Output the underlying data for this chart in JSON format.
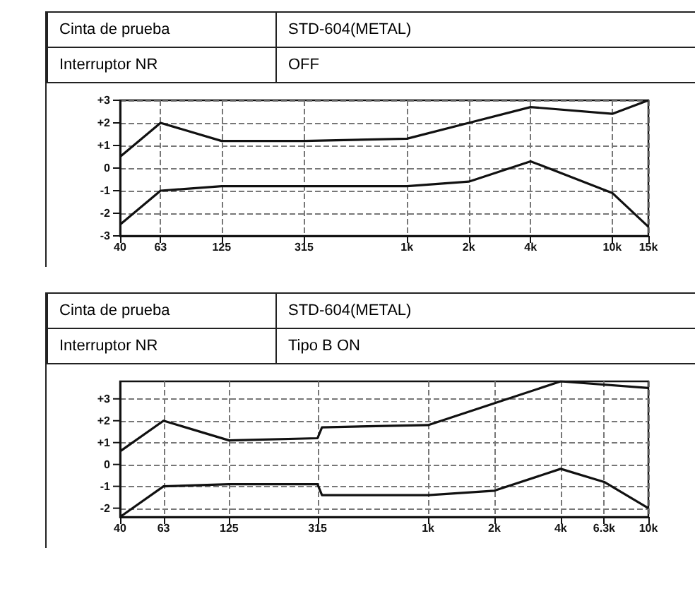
{
  "chart_data": [
    {
      "type": "line",
      "annotations": [
        "Cinta de prueba",
        "STD-604(METAL)",
        "Interruptor NR",
        "OFF"
      ],
      "series": [
        {
          "color": "#111111",
          "x": [
            40,
            63,
            125,
            315,
            1000,
            2000,
            4000,
            10000,
            15000
          ],
          "values": [
            0.5,
            2,
            1.2,
            1.2,
            1.3,
            2,
            2.7,
            2.4,
            3
          ]
        },
        {
          "color": "#111111",
          "x": [
            40,
            63,
            125,
            315,
            1000,
            2000,
            4000,
            10000,
            15000
          ],
          "values": [
            -2.5,
            -1,
            -0.8,
            -0.8,
            -0.8,
            -0.6,
            0.3,
            -1.1,
            -2.6
          ]
        }
      ],
      "log": "x",
      "xlim": [
        40,
        15000
      ],
      "xticks": [
        40,
        63,
        125,
        315,
        {
          "value": 1000,
          "label": "1k"
        },
        {
          "value": 2000,
          "label": "2k"
        },
        {
          "value": 4000,
          "label": "4k"
        },
        {
          "value": 10000,
          "label": "10k"
        },
        {
          "value": 15000,
          "label": "15k"
        }
      ],
      "ylim": [
        -3,
        3
      ],
      "yticks": [
        {
          "value": 3,
          "label": "+3"
        },
        {
          "value": 2,
          "label": "+2"
        },
        {
          "value": 1,
          "label": "+1"
        },
        0,
        -1,
        -2,
        -3
      ],
      "grid": true,
      "marker": "none",
      "line_style": "solid"
    },
    {
      "type": "line",
      "annotations": [
        "Cinta de prueba",
        "STD-604(METAL)",
        "Interruptor NR",
        "Tipo B ON"
      ],
      "series": [
        {
          "color": "#111111",
          "x": [
            40,
            63,
            125,
            315,
            330,
            1000,
            2000,
            4000,
            10000
          ],
          "values": [
            0.6,
            2,
            1.1,
            1.2,
            1.7,
            1.8,
            2.8,
            3.8,
            3.5
          ]
        },
        {
          "color": "#111111",
          "x": [
            40,
            63,
            125,
            315,
            330,
            1000,
            2000,
            4000,
            6300,
            10000
          ],
          "values": [
            -2.4,
            -1,
            -0.9,
            -0.9,
            -1.4,
            -1.4,
            -1.2,
            -0.2,
            -0.8,
            -2
          ]
        }
      ],
      "log": "x",
      "xlim": [
        40,
        10000
      ],
      "xticks": [
        40,
        63,
        125,
        315,
        {
          "value": 1000,
          "label": "1k"
        },
        {
          "value": 2000,
          "label": "2k"
        },
        {
          "value": 4000,
          "label": "4k"
        },
        {
          "value": 6300,
          "label": "6.3k"
        },
        {
          "value": 10000,
          "label": "10k"
        }
      ],
      "ylim": [
        -2.4,
        3.8
      ],
      "yticks": [
        {
          "value": 3,
          "label": "+3"
        },
        {
          "value": 2,
          "label": "+2"
        },
        {
          "value": 1,
          "label": "+1"
        },
        0,
        -1,
        -2
      ],
      "grid": true,
      "marker": "none",
      "line_style": "solid"
    }
  ]
}
